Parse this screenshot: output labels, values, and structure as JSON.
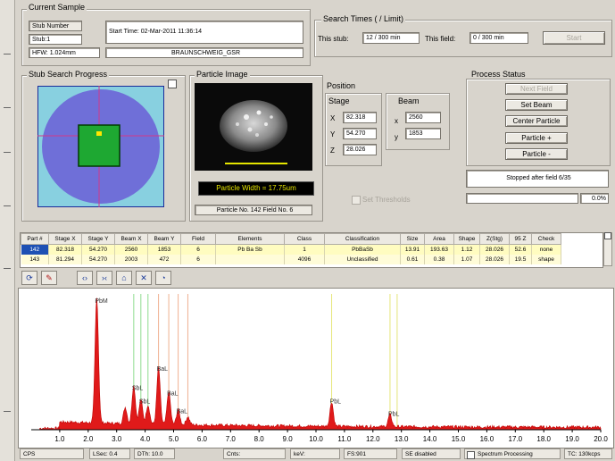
{
  "current_sample": {
    "group_label": "Current Sample",
    "stub_number_label": "Stub Number",
    "stub_value": "Stub:1",
    "kv_value": "HFW: 1.024mm",
    "start_time": "Start Time: 02-Mar-2011 11:36:14",
    "sample_name": "BRAUNSCHWEIG_GSR"
  },
  "search_times": {
    "group_label": "Search Times ( / Limit)",
    "this_stub_label": "This stub:",
    "this_stub_value": "12 / 300 min",
    "this_field_label": "This field:",
    "this_field_value": "0 / 300 min",
    "start_button": "Start"
  },
  "stub_progress": {
    "group_label": "Stub Search Progress"
  },
  "particle_image": {
    "group_label": "Particle Image",
    "width_label": "Particle Width = 17.75um",
    "particle_no": "Particle No. 142 Field No. 6"
  },
  "position": {
    "group_label": "Position",
    "stage_label": "Stage",
    "beam_label": "Beam",
    "x_label": "X",
    "y_label": "Y",
    "z_label": "Z",
    "stage_x": "82.318",
    "stage_y": "54.270",
    "stage_z": "28.026",
    "beam_x_label": "x",
    "beam_y_label": "y",
    "beam_x": "2560",
    "beam_y": "1853",
    "set_thresholds": "Set Thresholds"
  },
  "process_status": {
    "group_label": "Process Status",
    "next_field": "Next Field",
    "set_beam": "Set Beam",
    "center_particle": "Center Particle",
    "particle_plus": "Particle +",
    "particle_minus": "Particle -",
    "status_text": "Stopped after field 6/35",
    "percent": "0.0%"
  },
  "table": {
    "headers": [
      "Part #",
      "Stage X",
      "Stage Y",
      "Beam X",
      "Beam Y",
      "Field",
      "Elements",
      "Class",
      "Classification",
      "Size",
      "Area",
      "Shape",
      "Z(Stg)",
      "95 Z",
      "Check"
    ],
    "rows": [
      [
        "142",
        "82.318",
        "54.270",
        "2560",
        "1853",
        "6",
        "Pb Ba Sb",
        "1",
        "PbBaSb",
        "13.91",
        "193.63",
        "1.12",
        "28.026",
        "52.6",
        "none"
      ],
      [
        "143",
        "81.294",
        "54.270",
        "2003",
        "472",
        "6",
        "",
        "4096",
        "Unclassified",
        "0.61",
        "0.38",
        "1.07",
        "28.026",
        "19.5",
        "shape"
      ]
    ]
  },
  "toolbar": {
    "icons": [
      "refresh-icon",
      "edit-icon",
      "expand-icon",
      "collapse-icon",
      "prev-icon",
      "next-icon",
      "pie-icon"
    ]
  },
  "chart_data": {
    "type": "line",
    "xlim": [
      0,
      20
    ],
    "ylim": [
      0,
      100
    ],
    "x_ticks": [
      "1.0",
      "2.0",
      "3.0",
      "4.0",
      "5.0",
      "6.0",
      "7.0",
      "8.0",
      "9.0",
      "10.0",
      "11.0",
      "12.0",
      "13.0",
      "14.0",
      "15.0",
      "16.0",
      "17.0",
      "18.0",
      "19.0",
      "20.0"
    ],
    "peaks": [
      {
        "x": 2.3,
        "y": 92,
        "label": "PbM"
      },
      {
        "x": 3.3,
        "y": 12,
        "label": ""
      },
      {
        "x": 3.6,
        "y": 28,
        "label": "SbL"
      },
      {
        "x": 3.85,
        "y": 18,
        "label": "SbL"
      },
      {
        "x": 4.1,
        "y": 14,
        "label": ""
      },
      {
        "x": 4.47,
        "y": 42,
        "label": "BaL"
      },
      {
        "x": 4.83,
        "y": 24,
        "label": "BaL"
      },
      {
        "x": 5.16,
        "y": 11,
        "label": "BaL"
      },
      {
        "x": 5.5,
        "y": 6,
        "label": ""
      },
      {
        "x": 10.55,
        "y": 18,
        "label": "PbL"
      },
      {
        "x": 12.6,
        "y": 9,
        "label": "PbL"
      }
    ],
    "markers_green": [
      3.6,
      3.85,
      4.1
    ],
    "markers_orange": [
      4.47,
      4.83,
      5.16,
      5.5
    ],
    "markers_yellow": [
      10.55,
      12.6,
      12.85
    ]
  },
  "status_bar": {
    "cells": [
      "CPS",
      "LSec: 0.4",
      "DTh: 10.0",
      "Cnts:",
      "keV:",
      "FS:901",
      "SE disabled",
      "Spectrum Processing",
      "TC: 130kcps"
    ]
  }
}
